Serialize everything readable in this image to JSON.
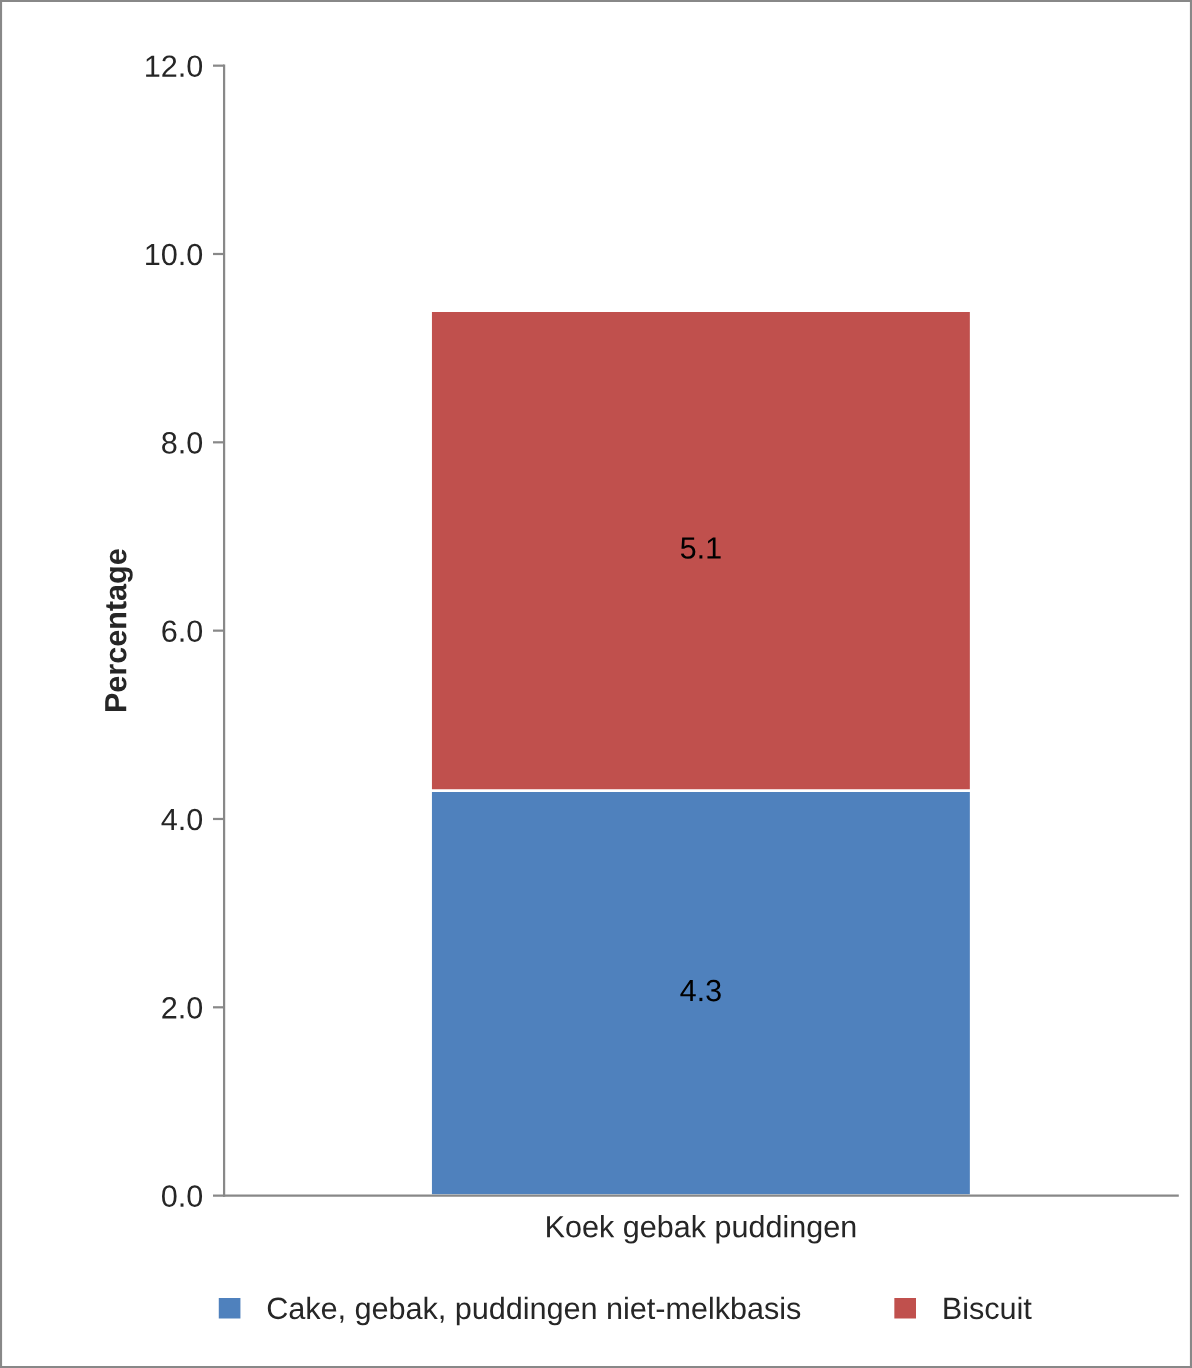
{
  "chart_data": {
    "type": "bar",
    "stacked": true,
    "ylabel": "Percentage",
    "categories": [
      "Koek gebak puddingen"
    ],
    "series": [
      {
        "name": "Cake, gebak, puddingen niet-melkbasis",
        "color": "#4f81bd",
        "values": [
          4.3
        ]
      },
      {
        "name": "Biscuit",
        "color": "#c0504d",
        "values": [
          5.1
        ]
      }
    ],
    "ylim": [
      0,
      12
    ],
    "yticks": [
      {
        "value": 0,
        "label": "0.0"
      },
      {
        "value": 2,
        "label": "2.0"
      },
      {
        "value": 4,
        "label": "4.0"
      },
      {
        "value": 6,
        "label": "6.0"
      },
      {
        "value": 8,
        "label": "8.0"
      },
      {
        "value": 10,
        "label": "10.0"
      },
      {
        "value": 12,
        "label": "12.0"
      }
    ],
    "data_labels": true,
    "grid": false,
    "legend": "bottom"
  }
}
